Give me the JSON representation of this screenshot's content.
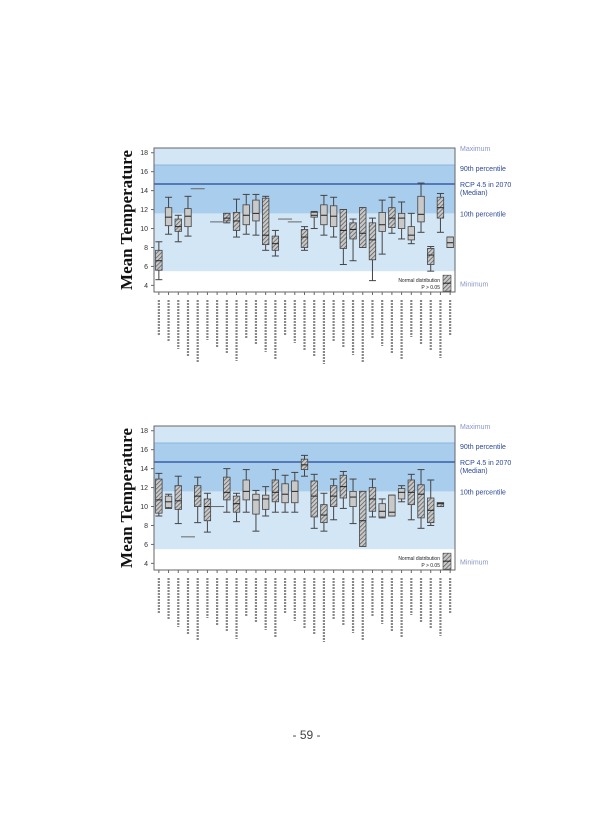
{
  "page_number": "- 59 -",
  "chart_data": [
    {
      "type": "box",
      "title": "",
      "ylabel": "Mean Temperature",
      "xlabel": "",
      "ylim": [
        3.3,
        18.5
      ],
      "yticks": [
        4,
        6,
        8,
        10,
        12,
        14,
        16,
        18
      ],
      "reference_bands": {
        "maximum": 18.5,
        "p90": 16.7,
        "median_rcp45_2070": 14.7,
        "p10": 11.6,
        "minimum": 5.5
      },
      "band_labels": [
        "Maximum",
        "90th percentile",
        "RCP 4.5 in 2070 (Median)",
        "10th percentile",
        "Minimum"
      ],
      "legend": {
        "label": "Normal distribution",
        "sublabel": "P > 0.05",
        "position": "bottom-right"
      },
      "categories_count": 31,
      "boxes": [
        {
          "min": 4.6,
          "q1": 5.6,
          "med": 6.6,
          "q3": 7.7,
          "max": 8.6,
          "normal": true
        },
        {
          "min": 9.4,
          "q1": 10.3,
          "med": 11.2,
          "q3": 12.2,
          "max": 13.3,
          "normal": false
        },
        {
          "min": 8.6,
          "q1": 9.7,
          "med": 10.2,
          "q3": 11.0,
          "max": 11.4,
          "normal": true
        },
        {
          "min": 9.2,
          "q1": 10.2,
          "med": 11.3,
          "q3": 12.1,
          "max": 13.4,
          "normal": false
        },
        {
          "line": 14.2
        },
        null,
        {
          "line": 10.7
        },
        {
          "min": 10.6,
          "q1": 10.8,
          "med": 11.1,
          "q3": 11.6,
          "max": 11.6,
          "normal": true
        },
        {
          "min": 9.1,
          "q1": 9.8,
          "med": 10.8,
          "q3": 11.7,
          "max": 13.1,
          "normal": true
        },
        {
          "min": 9.4,
          "q1": 10.4,
          "med": 11.4,
          "q3": 12.5,
          "max": 13.6,
          "normal": false
        },
        {
          "min": 9.3,
          "q1": 10.8,
          "med": 11.6,
          "q3": 13.0,
          "max": 13.6,
          "normal": false
        },
        {
          "min": 7.7,
          "q1": 8.3,
          "med": 9.3,
          "q3": 13.2,
          "max": 13.4,
          "normal": true
        },
        {
          "min": 7.1,
          "q1": 7.7,
          "med": 8.4,
          "q3": 9.2,
          "max": 9.8,
          "normal": true
        },
        {
          "line": 11.0
        },
        {
          "line": 10.7
        },
        {
          "min": 7.7,
          "q1": 8.0,
          "med": 9.1,
          "q3": 9.9,
          "max": 10.2,
          "normal": true
        },
        {
          "min": 10.0,
          "q1": 11.2,
          "med": 11.4,
          "q3": 11.7,
          "max": 11.8,
          "normal": false
        },
        {
          "min": 9.3,
          "q1": 10.4,
          "med": 11.4,
          "q3": 12.5,
          "max": 13.5,
          "normal": false
        },
        {
          "min": 9.1,
          "q1": 10.2,
          "med": 11.3,
          "q3": 12.4,
          "max": 13.3,
          "normal": false
        },
        {
          "min": 6.2,
          "q1": 7.9,
          "med": 9.8,
          "q3": 12.0,
          "max": 12.0,
          "normal": true
        },
        {
          "min": 6.6,
          "q1": 8.9,
          "med": 9.9,
          "q3": 10.6,
          "max": 11.0,
          "normal": true
        },
        {
          "min": 8.0,
          "q1": 8.0,
          "med": 9.5,
          "q3": 12.2,
          "max": 12.2,
          "normal": true
        },
        {
          "min": 4.5,
          "q1": 6.7,
          "med": 8.8,
          "q3": 10.6,
          "max": 11.1,
          "normal": true
        },
        {
          "min": 7.3,
          "q1": 9.7,
          "med": 10.4,
          "q3": 11.7,
          "max": 13.0,
          "normal": false
        },
        {
          "min": 9.5,
          "q1": 10.1,
          "med": 11.1,
          "q3": 12.2,
          "max": 13.3,
          "normal": true
        },
        {
          "min": 8.9,
          "q1": 10.0,
          "med": 11.1,
          "q3": 11.6,
          "max": 12.8,
          "normal": false
        },
        {
          "min": 8.4,
          "q1": 8.8,
          "med": 9.3,
          "q3": 10.2,
          "max": 11.6,
          "normal": false
        },
        {
          "min": 9.6,
          "q1": 10.7,
          "med": 11.5,
          "q3": 13.4,
          "max": 14.8,
          "normal": false
        },
        {
          "min": 5.5,
          "q1": 6.2,
          "med": 7.2,
          "q3": 7.9,
          "max": 8.1,
          "normal": true
        },
        {
          "min": 9.6,
          "q1": 11.1,
          "med": 12.2,
          "q3": 13.3,
          "max": 13.7,
          "normal": true
        },
        {
          "min": 8.0,
          "q1": 8.0,
          "med": 8.5,
          "q3": 9.1,
          "max": 9.1,
          "normal": false
        }
      ]
    },
    {
      "type": "box",
      "title": "",
      "ylabel": "Mean Temperature",
      "xlabel": "",
      "ylim": [
        3.3,
        18.5
      ],
      "yticks": [
        4,
        6,
        8,
        10,
        12,
        14,
        16,
        18
      ],
      "reference_bands": {
        "maximum": 18.5,
        "p90": 16.7,
        "median_rcp45_2070": 14.7,
        "p10": 11.6,
        "minimum": 5.5
      },
      "band_labels": [
        "Maximum",
        "90th percentile",
        "RCP 4.5 in 2070 (Median)",
        "10th percentile",
        "Minimum"
      ],
      "legend": {
        "label": "Normal distribution",
        "sublabel": "P > 0.05",
        "position": "bottom-right"
      },
      "categories_count": 31,
      "boxes": [
        {
          "min": 9.0,
          "q1": 9.3,
          "med": 10.7,
          "q3": 12.9,
          "max": 13.5,
          "normal": true
        },
        {
          "min": 9.8,
          "q1": 9.9,
          "med": 10.5,
          "q3": 11.1,
          "max": 11.3,
          "normal": false
        },
        {
          "min": 8.2,
          "q1": 9.7,
          "med": 10.6,
          "q3": 12.2,
          "max": 13.2,
          "normal": true
        },
        {
          "line": 6.8
        },
        {
          "min": 8.3,
          "q1": 10.0,
          "med": 11.1,
          "q3": 12.2,
          "max": 13.1,
          "normal": true
        },
        {
          "min": 7.3,
          "q1": 8.5,
          "med": 10.0,
          "q3": 10.8,
          "max": 11.4,
          "normal": true
        },
        {
          "line": 10.0
        },
        {
          "min": 9.4,
          "q1": 10.7,
          "med": 11.5,
          "q3": 13.1,
          "max": 14.0,
          "normal": true
        },
        {
          "min": 8.4,
          "q1": 9.4,
          "med": 10.3,
          "q3": 11.1,
          "max": 11.4,
          "normal": true
        },
        {
          "min": 9.4,
          "q1": 10.7,
          "med": 11.6,
          "q3": 12.8,
          "max": 13.9,
          "normal": false
        },
        {
          "min": 7.4,
          "q1": 9.2,
          "med": 10.7,
          "q3": 11.3,
          "max": 11.7,
          "normal": false
        },
        {
          "min": 9.0,
          "q1": 9.7,
          "med": 10.8,
          "q3": 11.2,
          "max": 12.1,
          "normal": false
        },
        {
          "min": 9.4,
          "q1": 10.5,
          "med": 11.5,
          "q3": 12.8,
          "max": 13.9,
          "normal": true
        },
        {
          "min": 9.4,
          "q1": 10.4,
          "med": 11.3,
          "q3": 12.4,
          "max": 13.3,
          "normal": false
        },
        {
          "min": 9.4,
          "q1": 10.4,
          "med": 11.6,
          "q3": 12.7,
          "max": 13.6,
          "normal": false
        },
        {
          "min": 13.2,
          "q1": 13.9,
          "med": 14.4,
          "q3": 15.0,
          "max": 15.4,
          "normal": true
        },
        {
          "min": 7.7,
          "q1": 8.9,
          "med": 11.1,
          "q3": 12.7,
          "max": 13.4,
          "normal": true
        },
        {
          "min": 7.4,
          "q1": 8.3,
          "med": 9.1,
          "q3": 10.2,
          "max": 11.4,
          "normal": true
        },
        {
          "min": 8.6,
          "q1": 10.0,
          "med": 11.1,
          "q3": 12.2,
          "max": 12.9,
          "normal": true
        },
        {
          "min": 9.8,
          "q1": 10.9,
          "med": 12.1,
          "q3": 13.3,
          "max": 13.7,
          "normal": true
        },
        {
          "min": 8.2,
          "q1": 10.0,
          "med": 11.0,
          "q3": 11.6,
          "max": 12.9,
          "normal": false
        },
        {
          "min": 5.8,
          "q1": 5.8,
          "med": 8.5,
          "q3": 11.6,
          "max": 11.6,
          "normal": true
        },
        {
          "min": 8.9,
          "q1": 9.5,
          "med": 10.8,
          "q3": 12.0,
          "max": 12.9,
          "normal": true
        },
        {
          "min": 8.8,
          "q1": 8.9,
          "med": 9.5,
          "q3": 10.3,
          "max": 10.8,
          "normal": false
        },
        {
          "min": 9.0,
          "q1": 9.0,
          "med": 9.4,
          "q3": 11.2,
          "max": 11.2,
          "normal": false
        },
        {
          "min": 10.5,
          "q1": 10.8,
          "med": 11.5,
          "q3": 11.9,
          "max": 12.2,
          "normal": false
        },
        {
          "min": 8.6,
          "q1": 10.2,
          "med": 11.5,
          "q3": 12.8,
          "max": 13.4,
          "normal": true
        },
        {
          "min": 7.7,
          "q1": 8.8,
          "med": 11.3,
          "q3": 12.3,
          "max": 13.9,
          "normal": true
        },
        {
          "min": 8.0,
          "q1": 8.3,
          "med": 9.6,
          "q3": 10.9,
          "max": 12.8,
          "normal": true
        },
        {
          "min": 10.0,
          "q1": 10.0,
          "med": 10.3,
          "q3": 10.4,
          "max": 10.4,
          "normal": true
        },
        null
      ]
    }
  ]
}
